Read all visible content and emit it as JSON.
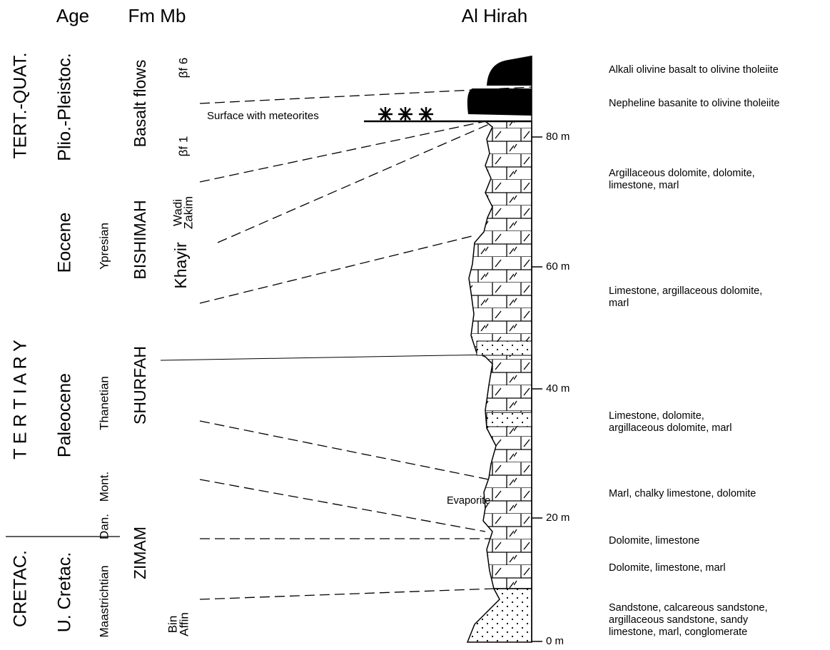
{
  "headers": {
    "age": "Age",
    "fm_mb": "Fm Mb",
    "section": "Al Hirah"
  },
  "age": {
    "era": [
      "TERT.-QUAT.",
      "T E R T I A R Y",
      "CRETAC."
    ],
    "epoch": [
      "Plio.-Pleistoc.",
      "Eocene",
      "Paleocene",
      "U. Cretac."
    ],
    "stage": [
      "Ypresian",
      "Thanetian",
      "Mont.",
      "Dan.",
      "Maastrichtian"
    ]
  },
  "formations": [
    "Basalt flows",
    "BISHIMAH",
    "SHURFAH",
    "ZIMAM"
  ],
  "members": {
    "bf6": "βf 6",
    "bf1": "βf 1",
    "wadi_zakim": [
      "Wadi",
      "Zakim"
    ],
    "khayir": "Khayir",
    "bin_affin": [
      "Bin",
      "Affin"
    ]
  },
  "annotations": {
    "meteorites": "Surface with meteorites",
    "evaporite": "Evaporite"
  },
  "scale": [
    "80 m",
    "60 m",
    "40 m",
    "20 m",
    "0 m"
  ],
  "lithology": [
    [
      "Alkali olivine basalt to olivine tholeiite"
    ],
    [
      "Nepheline basanite to olivine tholeiite"
    ],
    [
      "Argillaceous dolomite, dolomite,",
      "limestone, marl"
    ],
    [
      "Limestone, argillaceous dolomite,",
      "marl"
    ],
    [
      "Limestone, dolomite,",
      "argillaceous dolomite, marl"
    ],
    [
      "Marl, chalky limestone, dolomite"
    ],
    [
      "Dolomite, limestone"
    ],
    [
      "Dolomite, limestone, marl"
    ],
    [
      "Sandstone, calcareous sandstone,",
      "argillaceous sandstone, sandy",
      "limestone, marl, conglomerate"
    ]
  ]
}
